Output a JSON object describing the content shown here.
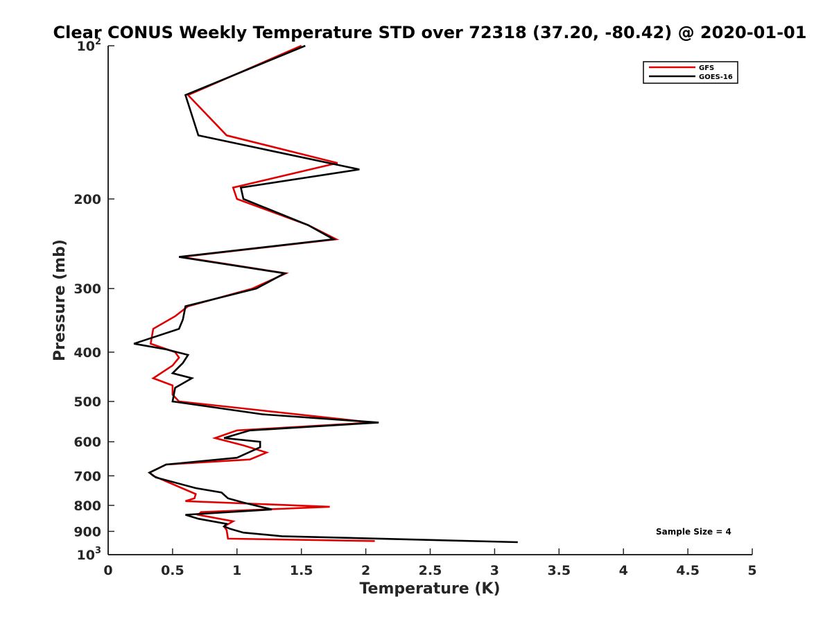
{
  "chart_data": {
    "type": "line",
    "title": "Clear CONUS Weekly Temperature STD over 72318 (37.20, -80.42) @ 2020-01-01",
    "xlabel": "Temperature (K)",
    "ylabel": "Pressure (mb)",
    "xlim": [
      0,
      5
    ],
    "ylim": [
      1000,
      100
    ],
    "y_scale": "log",
    "x_ticks": [
      "0",
      "0.5",
      "1",
      "1.5",
      "2",
      "2.5",
      "3",
      "3.5",
      "4",
      "4.5",
      "5"
    ],
    "y_ticks": [
      {
        "value": 100,
        "base": "10",
        "exp": "2"
      },
      {
        "value": 200,
        "label": "200"
      },
      {
        "value": 300,
        "label": "300"
      },
      {
        "value": 400,
        "label": "400"
      },
      {
        "value": 500,
        "label": "500"
      },
      {
        "value": 600,
        "label": "600"
      },
      {
        "value": 700,
        "label": "700"
      },
      {
        "value": 800,
        "label": "800"
      },
      {
        "value": 900,
        "label": "900"
      },
      {
        "value": 1000,
        "base": "10",
        "exp": "3"
      }
    ],
    "grid": false,
    "legend_position": "top-right",
    "annotation": "Sample Size = 4",
    "series": [
      {
        "name": "GFS",
        "color": "#e00000",
        "points": [
          [
            1.5,
            100
          ],
          [
            0.62,
            125
          ],
          [
            0.92,
            150
          ],
          [
            1.78,
            170
          ],
          [
            0.97,
            190
          ],
          [
            1.0,
            200
          ],
          [
            1.55,
            225
          ],
          [
            1.77,
            240
          ],
          [
            0.57,
            260
          ],
          [
            1.38,
            280
          ],
          [
            1.12,
            300
          ],
          [
            0.62,
            325
          ],
          [
            0.52,
            340
          ],
          [
            0.35,
            360
          ],
          [
            0.33,
            385
          ],
          [
            0.52,
            400
          ],
          [
            0.55,
            410
          ],
          [
            0.5,
            425
          ],
          [
            0.35,
            450
          ],
          [
            0.5,
            465
          ],
          [
            0.5,
            485
          ],
          [
            0.55,
            500
          ],
          [
            2.05,
            550
          ],
          [
            1.0,
            570
          ],
          [
            0.83,
            590
          ],
          [
            1.05,
            610
          ],
          [
            1.23,
            630
          ],
          [
            1.1,
            650
          ],
          [
            0.45,
            665
          ],
          [
            0.32,
            690
          ],
          [
            0.35,
            700
          ],
          [
            0.68,
            760
          ],
          [
            0.67,
            775
          ],
          [
            0.6,
            785
          ],
          [
            1.72,
            805
          ],
          [
            0.72,
            825
          ],
          [
            0.7,
            835
          ],
          [
            0.97,
            860
          ],
          [
            0.9,
            880
          ],
          [
            0.92,
            895
          ],
          [
            0.93,
            930
          ],
          [
            2.07,
            940
          ]
        ]
      },
      {
        "name": "GOES-16",
        "color": "#000000",
        "points": [
          [
            1.53,
            100
          ],
          [
            0.6,
            125
          ],
          [
            0.7,
            150
          ],
          [
            1.95,
            175
          ],
          [
            1.03,
            190
          ],
          [
            1.05,
            200
          ],
          [
            1.55,
            225
          ],
          [
            1.75,
            240
          ],
          [
            0.55,
            260
          ],
          [
            1.37,
            280
          ],
          [
            1.15,
            300
          ],
          [
            0.6,
            325
          ],
          [
            0.58,
            345
          ],
          [
            0.55,
            360
          ],
          [
            0.2,
            385
          ],
          [
            0.45,
            395
          ],
          [
            0.62,
            405
          ],
          [
            0.58,
            420
          ],
          [
            0.5,
            440
          ],
          [
            0.65,
            450
          ],
          [
            0.52,
            470
          ],
          [
            0.5,
            500
          ],
          [
            1.2,
            530
          ],
          [
            2.1,
            550
          ],
          [
            1.1,
            570
          ],
          [
            0.9,
            590
          ],
          [
            1.18,
            600
          ],
          [
            1.18,
            615
          ],
          [
            1.0,
            645
          ],
          [
            0.45,
            665
          ],
          [
            0.32,
            690
          ],
          [
            0.37,
            705
          ],
          [
            0.68,
            740
          ],
          [
            0.88,
            755
          ],
          [
            0.93,
            775
          ],
          [
            1.05,
            790
          ],
          [
            1.27,
            815
          ],
          [
            0.6,
            835
          ],
          [
            0.7,
            850
          ],
          [
            0.92,
            870
          ],
          [
            0.9,
            880
          ],
          [
            0.95,
            890
          ],
          [
            1.05,
            905
          ],
          [
            1.35,
            920
          ],
          [
            3.18,
            945
          ]
        ]
      }
    ]
  }
}
